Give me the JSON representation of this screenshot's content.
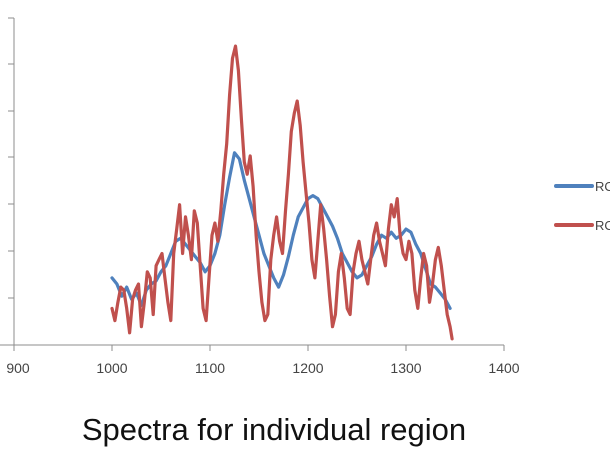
{
  "chart_data": {
    "type": "line",
    "title": "",
    "xlabel": "",
    "ylabel": "",
    "xlim": [
      900,
      1400
    ],
    "x_ticks": [
      "900",
      "1000",
      "1100",
      "1200",
      "1300",
      "1400"
    ],
    "ylim": [
      0,
      100
    ],
    "grid": false,
    "legend_position": "right",
    "series": [
      {
        "name": "RO",
        "color": "#4F81BD",
        "points": [
          [
            1000,
            22
          ],
          [
            1005,
            20
          ],
          [
            1010,
            16
          ],
          [
            1015,
            19
          ],
          [
            1020,
            15
          ],
          [
            1025,
            17
          ],
          [
            1030,
            13
          ],
          [
            1035,
            18
          ],
          [
            1040,
            20
          ],
          [
            1045,
            21
          ],
          [
            1050,
            24
          ],
          [
            1055,
            26
          ],
          [
            1060,
            30
          ],
          [
            1065,
            34
          ],
          [
            1070,
            35
          ],
          [
            1075,
            33
          ],
          [
            1080,
            31
          ],
          [
            1085,
            29
          ],
          [
            1090,
            27
          ],
          [
            1095,
            24
          ],
          [
            1100,
            26
          ],
          [
            1105,
            30
          ],
          [
            1110,
            36
          ],
          [
            1115,
            46
          ],
          [
            1120,
            55
          ],
          [
            1125,
            63
          ],
          [
            1130,
            61
          ],
          [
            1135,
            54
          ],
          [
            1140,
            48
          ],
          [
            1145,
            42
          ],
          [
            1150,
            36
          ],
          [
            1155,
            30
          ],
          [
            1160,
            26
          ],
          [
            1165,
            22
          ],
          [
            1170,
            19
          ],
          [
            1175,
            23
          ],
          [
            1180,
            29
          ],
          [
            1185,
            36
          ],
          [
            1190,
            42
          ],
          [
            1195,
            45
          ],
          [
            1200,
            48
          ],
          [
            1205,
            49
          ],
          [
            1210,
            48
          ],
          [
            1215,
            45
          ],
          [
            1220,
            42
          ],
          [
            1225,
            39
          ],
          [
            1230,
            35
          ],
          [
            1235,
            30
          ],
          [
            1240,
            27
          ],
          [
            1245,
            24
          ],
          [
            1250,
            22
          ],
          [
            1255,
            23
          ],
          [
            1260,
            26
          ],
          [
            1265,
            29
          ],
          [
            1270,
            33
          ],
          [
            1275,
            36
          ],
          [
            1280,
            35
          ],
          [
            1285,
            37
          ],
          [
            1290,
            35
          ],
          [
            1295,
            36
          ],
          [
            1300,
            38
          ],
          [
            1305,
            37
          ],
          [
            1310,
            33
          ],
          [
            1315,
            30
          ],
          [
            1320,
            25
          ],
          [
            1325,
            20
          ],
          [
            1330,
            19
          ],
          [
            1335,
            17
          ],
          [
            1340,
            15
          ],
          [
            1345,
            12
          ]
        ]
      },
      {
        "name": "RO",
        "color": "#C0504D",
        "points": [
          [
            1000,
            12
          ],
          [
            1003,
            8
          ],
          [
            1006,
            14
          ],
          [
            1009,
            19
          ],
          [
            1012,
            18
          ],
          [
            1015,
            12
          ],
          [
            1018,
            4
          ],
          [
            1021,
            15
          ],
          [
            1024,
            18
          ],
          [
            1027,
            20
          ],
          [
            1030,
            6
          ],
          [
            1033,
            14
          ],
          [
            1036,
            24
          ],
          [
            1039,
            22
          ],
          [
            1042,
            10
          ],
          [
            1045,
            26
          ],
          [
            1048,
            28
          ],
          [
            1051,
            30
          ],
          [
            1054,
            22
          ],
          [
            1057,
            14
          ],
          [
            1060,
            8
          ],
          [
            1063,
            30
          ],
          [
            1066,
            38
          ],
          [
            1069,
            46
          ],
          [
            1072,
            30
          ],
          [
            1075,
            42
          ],
          [
            1078,
            36
          ],
          [
            1081,
            28
          ],
          [
            1084,
            44
          ],
          [
            1087,
            40
          ],
          [
            1090,
            26
          ],
          [
            1093,
            12
          ],
          [
            1096,
            8
          ],
          [
            1099,
            22
          ],
          [
            1102,
            36
          ],
          [
            1105,
            40
          ],
          [
            1108,
            34
          ],
          [
            1111,
            44
          ],
          [
            1114,
            56
          ],
          [
            1117,
            66
          ],
          [
            1120,
            82
          ],
          [
            1123,
            94
          ],
          [
            1126,
            98
          ],
          [
            1129,
            90
          ],
          [
            1132,
            74
          ],
          [
            1135,
            60
          ],
          [
            1138,
            56
          ],
          [
            1141,
            62
          ],
          [
            1144,
            52
          ],
          [
            1147,
            36
          ],
          [
            1150,
            24
          ],
          [
            1153,
            14
          ],
          [
            1156,
            8
          ],
          [
            1159,
            10
          ],
          [
            1162,
            28
          ],
          [
            1165,
            36
          ],
          [
            1168,
            42
          ],
          [
            1171,
            34
          ],
          [
            1174,
            30
          ],
          [
            1177,
            44
          ],
          [
            1180,
            56
          ],
          [
            1183,
            70
          ],
          [
            1186,
            76
          ],
          [
            1189,
            80
          ],
          [
            1192,
            72
          ],
          [
            1195,
            60
          ],
          [
            1198,
            50
          ],
          [
            1201,
            40
          ],
          [
            1204,
            28
          ],
          [
            1207,
            22
          ],
          [
            1210,
            34
          ],
          [
            1213,
            46
          ],
          [
            1216,
            38
          ],
          [
            1219,
            28
          ],
          [
            1222,
            16
          ],
          [
            1225,
            6
          ],
          [
            1228,
            10
          ],
          [
            1231,
            24
          ],
          [
            1234,
            30
          ],
          [
            1237,
            22
          ],
          [
            1240,
            12
          ],
          [
            1243,
            10
          ],
          [
            1246,
            24
          ],
          [
            1249,
            30
          ],
          [
            1252,
            34
          ],
          [
            1255,
            28
          ],
          [
            1258,
            24
          ],
          [
            1261,
            20
          ],
          [
            1264,
            28
          ],
          [
            1267,
            36
          ],
          [
            1270,
            40
          ],
          [
            1273,
            34
          ],
          [
            1276,
            30
          ],
          [
            1279,
            26
          ],
          [
            1282,
            38
          ],
          [
            1285,
            46
          ],
          [
            1288,
            42
          ],
          [
            1291,
            48
          ],
          [
            1294,
            36
          ],
          [
            1297,
            30
          ],
          [
            1300,
            28
          ],
          [
            1303,
            34
          ],
          [
            1306,
            30
          ],
          [
            1309,
            18
          ],
          [
            1312,
            12
          ],
          [
            1315,
            22
          ],
          [
            1318,
            30
          ],
          [
            1321,
            26
          ],
          [
            1324,
            14
          ],
          [
            1327,
            20
          ],
          [
            1330,
            28
          ],
          [
            1333,
            32
          ],
          [
            1336,
            26
          ],
          [
            1339,
            18
          ],
          [
            1342,
            10
          ],
          [
            1345,
            6
          ],
          [
            1347,
            2
          ]
        ]
      }
    ]
  },
  "caption": "Spectra for individual region"
}
